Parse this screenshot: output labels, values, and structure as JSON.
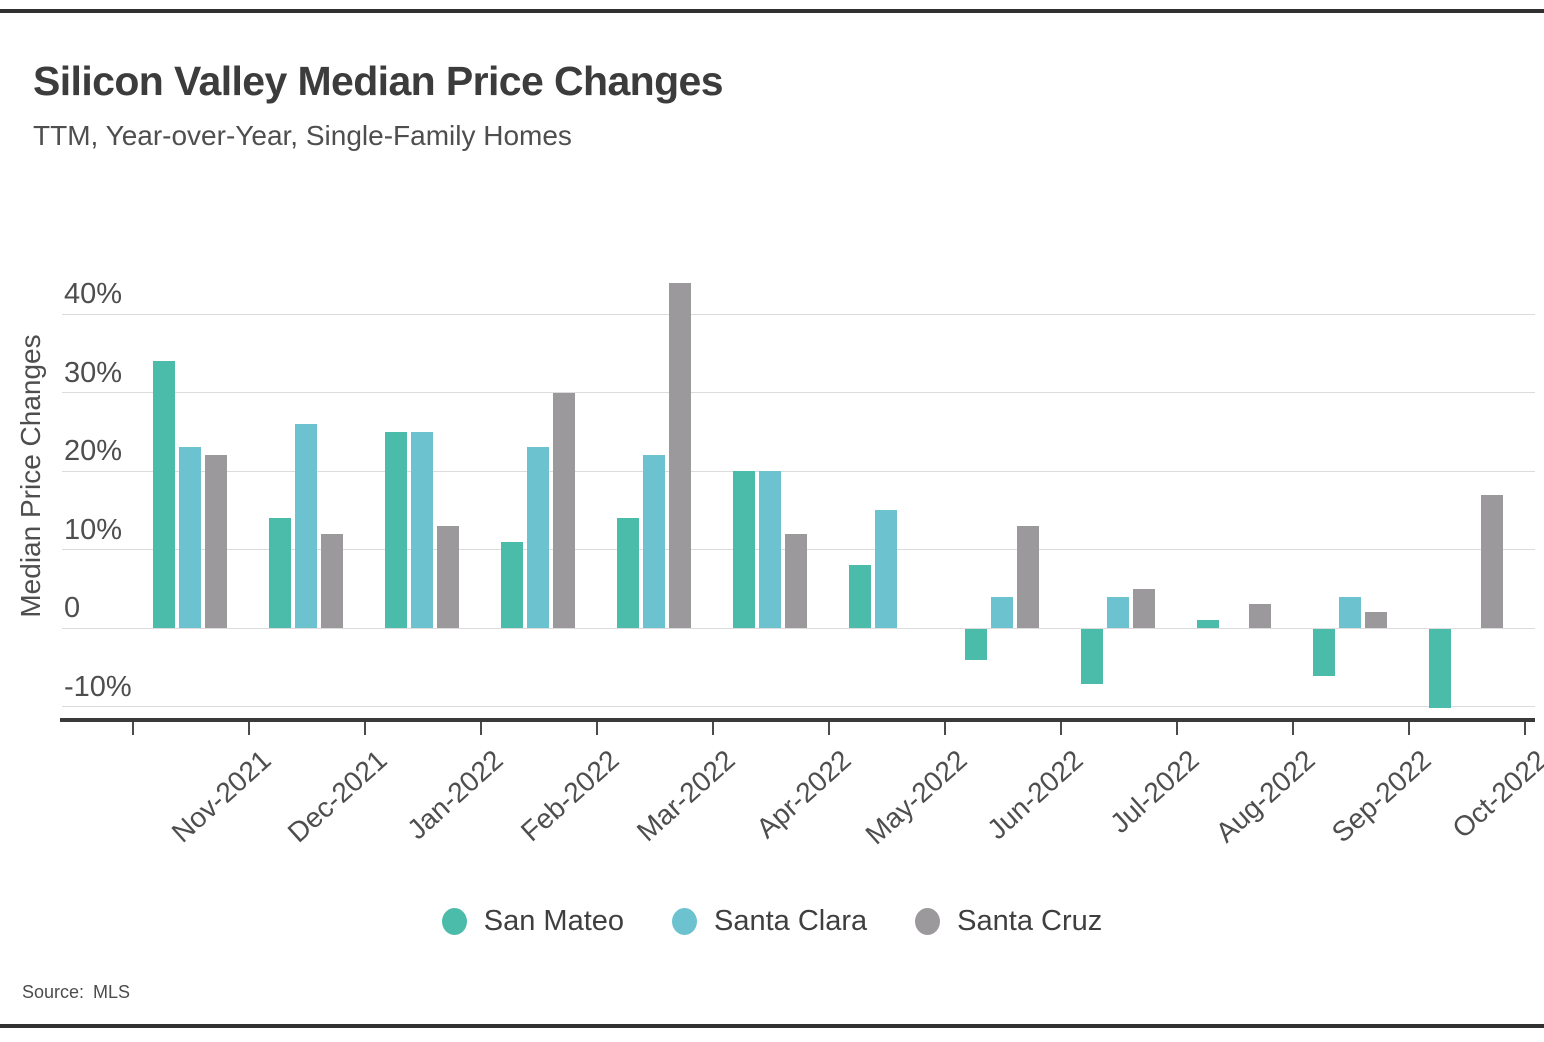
{
  "header": {
    "title": "Silicon Valley Median Price Changes",
    "subtitle": "TTM, Year-over-Year, Single-Family Homes"
  },
  "footer": {
    "source_label": "Source:",
    "source_value": "MLS"
  },
  "chart_data": {
    "type": "bar",
    "title": "Silicon Valley Median Price Changes",
    "subtitle": "TTM, Year-over-Year, Single-Family Homes",
    "ylabel": "Median Price Changes",
    "xlabel": "",
    "units": "percent",
    "grid": true,
    "legend_position": "bottom",
    "ylim": [
      -12,
      46
    ],
    "categories": [
      "Nov-2021",
      "Dec-2021",
      "Jan-2022",
      "Feb-2022",
      "Mar-2022",
      "Apr-2022",
      "May-2022",
      "Jun-2022",
      "Jul-2022",
      "Aug-2022",
      "Sep-2022",
      "Oct-2022"
    ],
    "y_ticks": [
      {
        "label": "40%",
        "value": 40
      },
      {
        "label": "30%",
        "value": 30
      },
      {
        "label": "20%",
        "value": 20
      },
      {
        "label": "10%",
        "value": 10
      },
      {
        "label": "0",
        "value": 0
      },
      {
        "label": "-10%",
        "value": -10
      }
    ],
    "series": [
      {
        "name": "San Mateo",
        "color": "#4ABCA9",
        "values": [
          34,
          14,
          25,
          11,
          14,
          20,
          8,
          -4,
          -7,
          1,
          -6,
          -10
        ]
      },
      {
        "name": "Santa Clara",
        "color": "#6CC3CF",
        "values": [
          23,
          26,
          25,
          23,
          22,
          20,
          15,
          4,
          4,
          0,
          4,
          0
        ]
      },
      {
        "name": "Santa Cruz",
        "color": "#9B999B",
        "values": [
          22,
          12,
          13,
          30,
          44,
          12,
          0,
          13,
          5,
          3,
          2,
          17
        ]
      }
    ]
  }
}
